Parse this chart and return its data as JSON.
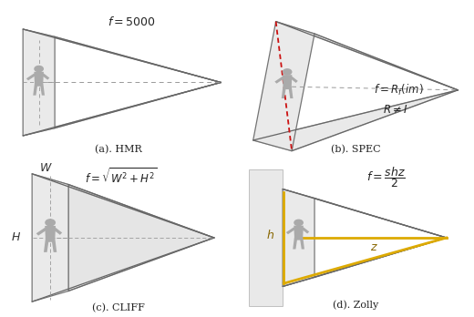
{
  "panel_labels": [
    "(a). HMR",
    "(b). SPEC",
    "(c). CLIFF",
    "(d). Zolly"
  ],
  "background_color": "#ffffff",
  "edge_color": "#666666",
  "face_color": "#e8e8e8",
  "face_color2": "#d4d4d4",
  "dashed_color": "#999999",
  "red_color": "#cc1111",
  "yellow_color": "#ddaa00",
  "label_color": "#333333"
}
